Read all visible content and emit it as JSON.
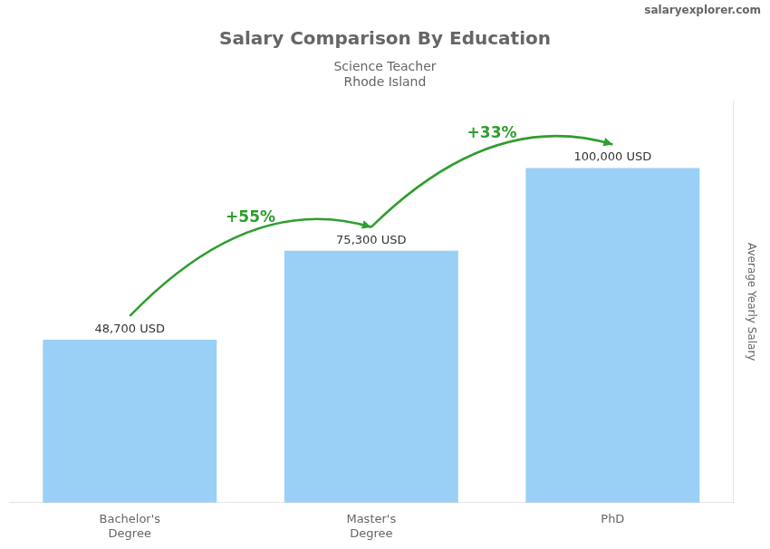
{
  "chart_data": {
    "type": "bar",
    "title": "Salary Comparison By Education",
    "subtitle": [
      "Science Teacher",
      "Rhode Island"
    ],
    "watermark": "salaryexplorer.com",
    "y_label": "Average Yearly Salary",
    "categories": [
      "Bachelor's\nDegree",
      "Master's\nDegree",
      "PhD"
    ],
    "values": [
      48700,
      75300,
      100000
    ],
    "value_labels": [
      "48,700 USD",
      "75,300 USD",
      "100,000 USD"
    ],
    "data_labels": true,
    "annotations": [
      {
        "text": "+55%",
        "from": "Bachelor's\nDegree",
        "to": "Master's\nDegree"
      },
      {
        "text": "+33%",
        "from": "Master's\nDegree",
        "to": "PhD"
      }
    ],
    "ylim": [
      0,
      120000
    ],
    "tick_labels": "x",
    "grid": false
  }
}
